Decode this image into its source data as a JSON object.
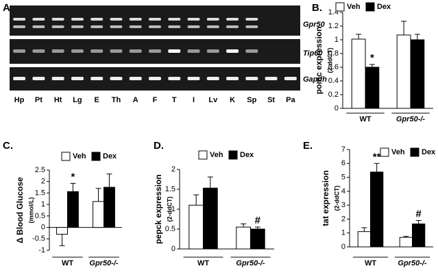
{
  "gel": {
    "panel_label": "A.",
    "genes": [
      "Gpr50",
      "Tip60",
      "Gapdh"
    ],
    "lanes": [
      "Hp",
      "Pt",
      "Ht",
      "Lg",
      "E",
      "Th",
      "A",
      "F",
      "T",
      "I",
      "Lv",
      "K",
      "Sp",
      "St",
      "Pa"
    ]
  },
  "chart_data": [
    {
      "type": "bar",
      "panel_label": "B.",
      "ylabel": [
        "pomc expression",
        "(2-ddCT)"
      ],
      "categories": [
        "WT",
        "Gpr50-/-"
      ],
      "ylim": [
        0,
        1.4
      ],
      "yticks": [
        0,
        0.2,
        0.4,
        0.6,
        0.8,
        1,
        1.2,
        1.4
      ],
      "series": [
        {
          "name": "Veh",
          "color": "#ffffff",
          "values": [
            1.01,
            1.07
          ],
          "errors": [
            0.07,
            0.2
          ],
          "annotations": [
            null,
            null
          ]
        },
        {
          "name": "Dex",
          "color": "#000000",
          "values": [
            0.6,
            1.0
          ],
          "errors": [
            0.04,
            0.08
          ],
          "annotations": [
            "*",
            null
          ]
        }
      ]
    },
    {
      "type": "bar",
      "panel_label": "C.",
      "ylabel": [
        "Δ Blood Glucose",
        "(mmol/L)"
      ],
      "categories": [
        "WT",
        "Gpr50-/-"
      ],
      "ylim": [
        -1,
        2.5
      ],
      "yticks": [
        -1,
        -0.5,
        0,
        0.5,
        1,
        1.5,
        2,
        2.5
      ],
      "series": [
        {
          "name": "Veh",
          "color": "#ffffff",
          "values": [
            -0.3,
            1.13
          ],
          "errors": [
            0.5,
            0.57
          ],
          "annotations": [
            null,
            null
          ]
        },
        {
          "name": "Dex",
          "color": "#000000",
          "values": [
            1.56,
            1.75
          ],
          "errors": [
            0.36,
            0.58
          ],
          "annotations": [
            "*",
            null
          ]
        }
      ]
    },
    {
      "type": "bar",
      "panel_label": "D.",
      "ylabel": [
        "pepck expression",
        "(2-ddCT)"
      ],
      "categories": [
        "WT",
        "Gpr50-/-"
      ],
      "ylim": [
        0,
        2
      ],
      "yticks": [
        0,
        0.5,
        1,
        1.5,
        2
      ],
      "series": [
        {
          "name": "Veh",
          "color": "#ffffff",
          "values": [
            1.1,
            0.55
          ],
          "errors": [
            0.26,
            0.08
          ],
          "annotations": [
            null,
            null
          ]
        },
        {
          "name": "Dex",
          "color": "#000000",
          "values": [
            1.53,
            0.5
          ],
          "errors": [
            0.28,
            0.05
          ],
          "annotations": [
            null,
            "#"
          ]
        }
      ]
    },
    {
      "type": "bar",
      "panel_label": "E.",
      "ylabel": [
        "tat expression",
        "(2-ddCT)"
      ],
      "categories": [
        "WT",
        "Gpr50-/-"
      ],
      "ylim": [
        0,
        7
      ],
      "yticks": [
        0,
        1,
        2,
        3,
        4,
        5,
        6,
        7
      ],
      "series": [
        {
          "name": "Veh",
          "color": "#ffffff",
          "values": [
            1.1,
            0.68
          ],
          "errors": [
            0.28,
            0.08
          ],
          "annotations": [
            null,
            null
          ]
        },
        {
          "name": "Dex",
          "color": "#000000",
          "values": [
            5.38,
            1.65
          ],
          "errors": [
            0.62,
            0.25
          ],
          "annotations": [
            "**",
            "#"
          ]
        }
      ]
    }
  ]
}
